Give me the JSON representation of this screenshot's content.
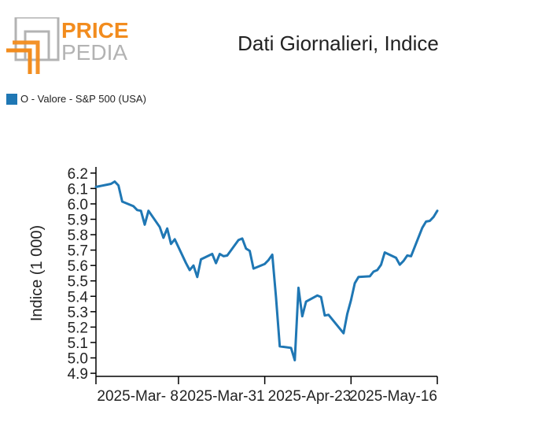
{
  "logo": {
    "line1": "PRICE",
    "line2": "PEDIA"
  },
  "colors": {
    "logo_gray": "#b3b3b3",
    "logo_orange": "#f28c1e",
    "series": "#1f77b4",
    "axis": "#000000"
  },
  "chart_data": {
    "type": "line",
    "title": "Dati Giornalieri, Indice",
    "ylabel": "Indice (1 000)",
    "xlabel": "",
    "legend": {
      "placement": "top-left",
      "entries": [
        "O - Valore - S&P 500 (USA)"
      ]
    },
    "grid": false,
    "ylim": [
      4.88,
      6.24
    ],
    "yticks": [
      "4.9",
      "5.0",
      "5.1",
      "5.2",
      "5.3",
      "5.4",
      "5.5",
      "5.6",
      "5.7",
      "5.8",
      "5.9",
      "6.0",
      "6.1",
      "6.2"
    ],
    "xlim": [
      "2025-02-14",
      "2025-05-16"
    ],
    "xticks": [
      {
        "date": "2025-02-14",
        "label": ""
      },
      {
        "date": "2025-03-08",
        "label": "2025-Mar- 8"
      },
      {
        "date": "2025-03-31",
        "label": "2025-Mar-31"
      },
      {
        "date": "2025-04-23",
        "label": "2025-Apr-23"
      },
      {
        "date": "2025-05-16",
        "label": "2025-May-16"
      }
    ],
    "series": [
      {
        "name": "O - Valore - S&P 500 (USA)",
        "points": [
          [
            "2025-02-14",
            6.11
          ],
          [
            "2025-02-17",
            6.125
          ],
          [
            "2025-02-18",
            6.13
          ],
          [
            "2025-02-19",
            6.145
          ],
          [
            "2025-02-20",
            6.12
          ],
          [
            "2025-02-21",
            6.015
          ],
          [
            "2025-02-24",
            5.985
          ],
          [
            "2025-02-25",
            5.96
          ],
          [
            "2025-02-26",
            5.955
          ],
          [
            "2025-02-27",
            5.865
          ],
          [
            "2025-02-28",
            5.955
          ],
          [
            "2025-03-03",
            5.85
          ],
          [
            "2025-03-04",
            5.78
          ],
          [
            "2025-03-05",
            5.84
          ],
          [
            "2025-03-06",
            5.74
          ],
          [
            "2025-03-07",
            5.77
          ],
          [
            "2025-03-10",
            5.615
          ],
          [
            "2025-03-11",
            5.57
          ],
          [
            "2025-03-12",
            5.6
          ],
          [
            "2025-03-13",
            5.525
          ],
          [
            "2025-03-14",
            5.64
          ],
          [
            "2025-03-17",
            5.675
          ],
          [
            "2025-03-18",
            5.615
          ],
          [
            "2025-03-19",
            5.675
          ],
          [
            "2025-03-20",
            5.66
          ],
          [
            "2025-03-21",
            5.665
          ],
          [
            "2025-03-24",
            5.765
          ],
          [
            "2025-03-25",
            5.775
          ],
          [
            "2025-03-26",
            5.71
          ],
          [
            "2025-03-27",
            5.695
          ],
          [
            "2025-03-28",
            5.58
          ],
          [
            "2025-03-31",
            5.61
          ],
          [
            "2025-04-01",
            5.635
          ],
          [
            "2025-04-02",
            5.67
          ],
          [
            "2025-04-03",
            5.395
          ],
          [
            "2025-04-04",
            5.075
          ],
          [
            "2025-04-07",
            5.065
          ],
          [
            "2025-04-08",
            4.985
          ],
          [
            "2025-04-09",
            5.455
          ],
          [
            "2025-04-10",
            5.27
          ],
          [
            "2025-04-11",
            5.365
          ],
          [
            "2025-04-14",
            5.405
          ],
          [
            "2025-04-15",
            5.395
          ],
          [
            "2025-04-16",
            5.275
          ],
          [
            "2025-04-17",
            5.28
          ],
          [
            "2025-04-21",
            5.16
          ],
          [
            "2025-04-22",
            5.285
          ],
          [
            "2025-04-23",
            5.375
          ],
          [
            "2025-04-24",
            5.485
          ],
          [
            "2025-04-25",
            5.525
          ],
          [
            "2025-04-28",
            5.53
          ],
          [
            "2025-04-29",
            5.56
          ],
          [
            "2025-04-30",
            5.57
          ],
          [
            "2025-05-01",
            5.605
          ],
          [
            "2025-05-02",
            5.685
          ],
          [
            "2025-05-05",
            5.65
          ],
          [
            "2025-05-06",
            5.605
          ],
          [
            "2025-05-07",
            5.63
          ],
          [
            "2025-05-08",
            5.665
          ],
          [
            "2025-05-09",
            5.66
          ],
          [
            "2025-05-12",
            5.845
          ],
          [
            "2025-05-13",
            5.885
          ],
          [
            "2025-05-14",
            5.89
          ],
          [
            "2025-05-15",
            5.915
          ],
          [
            "2025-05-16",
            5.955
          ]
        ]
      }
    ]
  }
}
